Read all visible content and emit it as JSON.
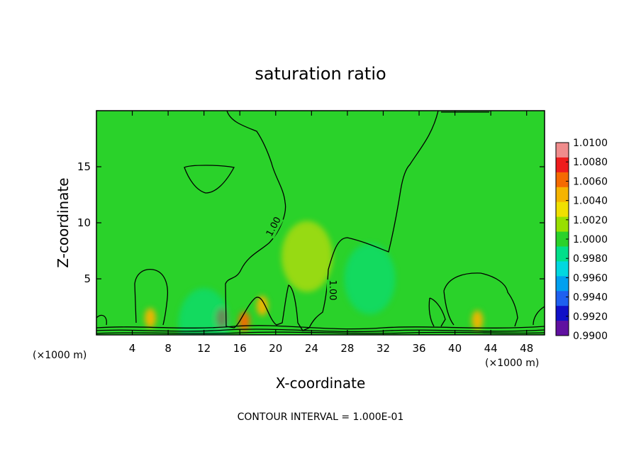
{
  "chart_data": {
    "type": "heatmap",
    "title": "saturation ratio",
    "xlabel": "X-coordinate",
    "ylabel": "Z-coordinate",
    "x_unit_left": "(×1000 m)",
    "x_unit_right": "(×1000 m)",
    "xlim": [
      0,
      50
    ],
    "ylim": [
      0,
      20
    ],
    "x_ticks": [
      4,
      8,
      12,
      16,
      20,
      24,
      28,
      32,
      36,
      40,
      44,
      48
    ],
    "y_ticks": [
      5,
      10,
      15
    ],
    "colorbar": {
      "min": 0.99,
      "max": 1.01,
      "ticks": [
        "1.0100",
        "1.0080",
        "1.0060",
        "1.0040",
        "1.0020",
        "1.0000",
        "0.9980",
        "0.9960",
        "0.9940",
        "0.9920",
        "0.9900"
      ],
      "colors": [
        "#f08c8c",
        "#ee1c1c",
        "#f56a00",
        "#f5b400",
        "#f0e000",
        "#98e000",
        "#2ad22a",
        "#00e08a",
        "#00d8e0",
        "#00a0f0",
        "#1e60f0",
        "#1010c8",
        "#6010a0"
      ]
    },
    "contour_label": "1.00",
    "background_value": 1.0007,
    "features": [
      {
        "kind": "high",
        "x": 6.0,
        "z": 1.5,
        "value": 1.004
      },
      {
        "kind": "high",
        "x": 14.0,
        "z": 1.5,
        "value": 1.007
      },
      {
        "kind": "high",
        "x": 16.5,
        "z": 1.2,
        "value": 1.006
      },
      {
        "kind": "high",
        "x": 18.5,
        "z": 2.6,
        "value": 1.004
      },
      {
        "kind": "high",
        "x": 42.5,
        "z": 1.3,
        "value": 1.004
      },
      {
        "kind": "high",
        "x": 23.5,
        "z": 7.0,
        "value": 1.0025
      },
      {
        "kind": "low",
        "x": 30.5,
        "z": 5.0,
        "value": 0.999
      },
      {
        "kind": "low",
        "x": 12.0,
        "z": 1.0,
        "value": 0.9985
      }
    ],
    "footer": "CONTOUR INTERVAL = 1.000E-01"
  }
}
